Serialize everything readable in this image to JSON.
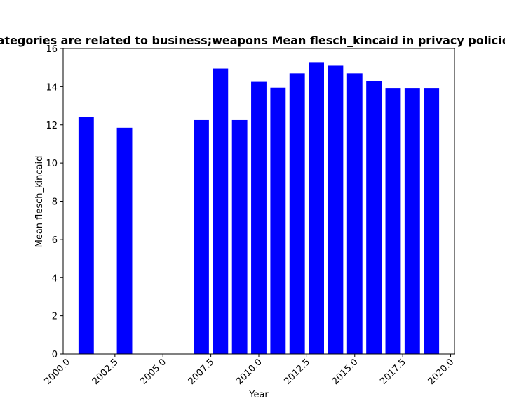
{
  "chart_data": {
    "type": "bar",
    "title": "Categories are related to business;weapons Mean flesch_kincaid in privacy policies",
    "xlabel": "Year",
    "ylabel": "Mean flesch_kincaid",
    "xlim": [
      1999.8,
      2020.2
    ],
    "ylim": [
      0,
      16
    ],
    "x_ticks": [
      2000.0,
      2002.5,
      2005.0,
      2007.5,
      2010.0,
      2012.5,
      2015.0,
      2017.5,
      2020.0
    ],
    "x_tick_labels": [
      "2000.0",
      "2002.5",
      "2005.0",
      "2007.5",
      "2010.0",
      "2012.5",
      "2015.0",
      "2017.5",
      "2020.0"
    ],
    "y_ticks": [
      0,
      2,
      4,
      6,
      8,
      10,
      12,
      14,
      16
    ],
    "y_tick_labels": [
      "0",
      "2",
      "4",
      "6",
      "8",
      "10",
      "12",
      "14",
      "16"
    ],
    "bar_color": "#0000ff",
    "bar_width": 0.8,
    "grid": false,
    "x": [
      2001,
      2003,
      2007,
      2008,
      2009,
      2010,
      2011,
      2012,
      2013,
      2014,
      2015,
      2016,
      2017,
      2018,
      2019
    ],
    "values": [
      12.4,
      11.85,
      12.25,
      14.95,
      12.25,
      14.25,
      13.95,
      14.7,
      15.25,
      15.1,
      14.7,
      14.3,
      13.9,
      13.9,
      13.9
    ]
  }
}
